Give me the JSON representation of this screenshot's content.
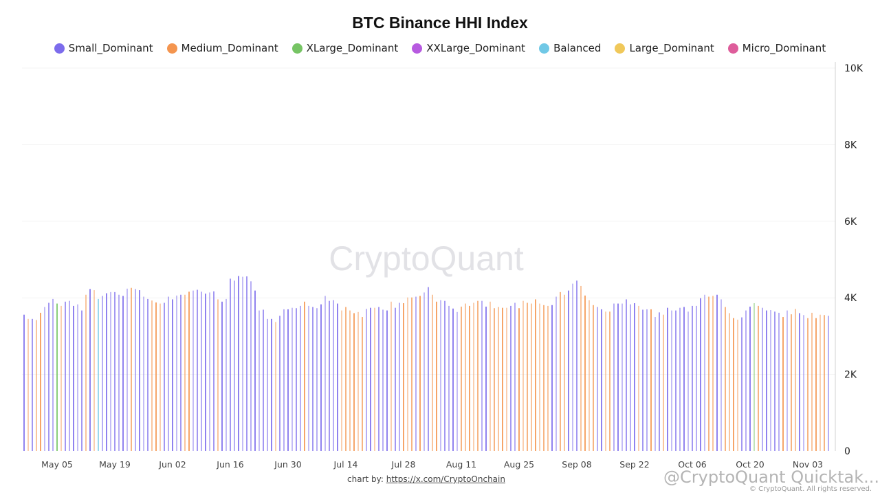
{
  "chart_data": {
    "type": "bar",
    "title": "BTC Binance HHI Index",
    "legend": [
      {
        "name": "Small_Dominant",
        "color": "#7c6cec"
      },
      {
        "name": "Medium_Dominant",
        "color": "#f4954f"
      },
      {
        "name": "XLarge_Dominant",
        "color": "#76c464"
      },
      {
        "name": "XXLarge_Dominant",
        "color": "#b75ae0"
      },
      {
        "name": "Balanced",
        "color": "#70c8e6"
      },
      {
        "name": "Large_Dominant",
        "color": "#f0c85a"
      },
      {
        "name": "Micro_Dominant",
        "color": "#de5d9b"
      }
    ],
    "legend_placement": "top",
    "x_start": "2024-04-27",
    "x_step_days": 1,
    "x_ticks": [
      "May 05",
      "May 19",
      "Jun 02",
      "Jun 16",
      "Jun 30",
      "Jul 14",
      "Jul 28",
      "Aug 11",
      "Aug 25",
      "Sep 08",
      "Sep 22",
      "Oct 06",
      "Oct 20",
      "Nov 03"
    ],
    "x_tick_dates": [
      "2024-05-05",
      "2024-05-19",
      "2024-06-02",
      "2024-06-16",
      "2024-06-30",
      "2024-07-14",
      "2024-07-28",
      "2024-08-11",
      "2024-08-25",
      "2024-09-08",
      "2024-09-22",
      "2024-10-06",
      "2024-10-20",
      "2024-11-03"
    ],
    "y_ticks": [
      "0",
      "2K",
      "4K",
      "6K",
      "8K",
      "10K"
    ],
    "ylim": [
      0,
      10000
    ],
    "grid": true,
    "values": [
      3560,
      3450,
      3450,
      3420,
      3610,
      3760,
      3870,
      3970,
      3850,
      3790,
      3900,
      3920,
      3790,
      3830,
      3670,
      4080,
      4230,
      4200,
      3970,
      4050,
      4120,
      4150,
      4150,
      4080,
      4050,
      4240,
      4260,
      4230,
      4200,
      4030,
      3970,
      3930,
      3880,
      3850,
      3870,
      4030,
      3960,
      4060,
      4080,
      4080,
      4160,
      4190,
      4210,
      4160,
      4110,
      4140,
      4170,
      3960,
      3900,
      3970,
      4500,
      4450,
      4570,
      4550,
      4560,
      4430,
      4190,
      3670,
      3690,
      3450,
      3450,
      3370,
      3530,
      3700,
      3700,
      3740,
      3730,
      3790,
      3900,
      3790,
      3760,
      3730,
      3830,
      4050,
      3920,
      3940,
      3850,
      3670,
      3760,
      3670,
      3600,
      3630,
      3500,
      3710,
      3740,
      3740,
      3760,
      3690,
      3670,
      3900,
      3740,
      3870,
      3860,
      4010,
      4010,
      4030,
      4050,
      4140,
      4280,
      4080,
      3900,
      3940,
      3920,
      3790,
      3720,
      3630,
      3770,
      3850,
      3790,
      3870,
      3920,
      3920,
      3770,
      3900,
      3730,
      3760,
      3740,
      3740,
      3790,
      3870,
      3730,
      3920,
      3870,
      3850,
      3960,
      3850,
      3810,
      3790,
      3810,
      4030,
      4150,
      4080,
      4190,
      4370,
      4450,
      4310,
      4060,
      3940,
      3810,
      3760,
      3700,
      3640,
      3640,
      3850,
      3850,
      3850,
      3960,
      3830,
      3860,
      3790,
      3690,
      3700,
      3700,
      3500,
      3620,
      3560,
      3740,
      3670,
      3670,
      3740,
      3760,
      3640,
      3790,
      3790,
      3990,
      4080,
      4030,
      4050,
      4080,
      3960,
      3760,
      3600,
      3470,
      3430,
      3490,
      3670,
      3770,
      3860,
      3790,
      3740,
      3670,
      3680,
      3640,
      3610,
      3500,
      3670,
      3570,
      3710,
      3600,
      3550,
      3470,
      3610,
      3470,
      3560,
      3550,
      3530
    ],
    "category": [
      0,
      1,
      0,
      1,
      1,
      0,
      0,
      0,
      2,
      1,
      0,
      0,
      0,
      0,
      0,
      1,
      0,
      1,
      4,
      0,
      0,
      0,
      0,
      0,
      0,
      0,
      1,
      0,
      0,
      0,
      0,
      1,
      1,
      1,
      0,
      0,
      0,
      0,
      0,
      1,
      1,
      0,
      0,
      0,
      0,
      0,
      0,
      1,
      0,
      0,
      0,
      0,
      0,
      0,
      0,
      0,
      0,
      0,
      0,
      0,
      0,
      1,
      0,
      0,
      0,
      0,
      0,
      0,
      1,
      0,
      0,
      0,
      0,
      0,
      0,
      0,
      0,
      1,
      1,
      1,
      1,
      1,
      1,
      0,
      0,
      1,
      0,
      0,
      0,
      1,
      0,
      0,
      1,
      1,
      1,
      0,
      1,
      0,
      0,
      1,
      1,
      0,
      0,
      0,
      0,
      0,
      1,
      1,
      1,
      1,
      1,
      0,
      0,
      1,
      1,
      1,
      1,
      1,
      0,
      0,
      1,
      1,
      1,
      1,
      1,
      1,
      1,
      1,
      0,
      0,
      1,
      1,
      0,
      0,
      0,
      1,
      1,
      1,
      1,
      0,
      0,
      1,
      1,
      0,
      0,
      0,
      0,
      0,
      0,
      1,
      0,
      0,
      1,
      0,
      0,
      1,
      0,
      0,
      0,
      0,
      0,
      0,
      0,
      0,
      0,
      0,
      1,
      1,
      0,
      0,
      1,
      1,
      1,
      1,
      0,
      0,
      0,
      2,
      1,
      0,
      0,
      0,
      0,
      0,
      1,
      0,
      1,
      1,
      0,
      0,
      1,
      1,
      1,
      1,
      1,
      0
    ]
  },
  "watermark": "CryptoQuant",
  "footer": {
    "prefix": "chart by: ",
    "link": "https://x.com/CryptoOnchain"
  },
  "overlay": {
    "handle": "@CryptoQuant Quicktak...",
    "rights": "© CryptoQuant. All rights reserved."
  }
}
